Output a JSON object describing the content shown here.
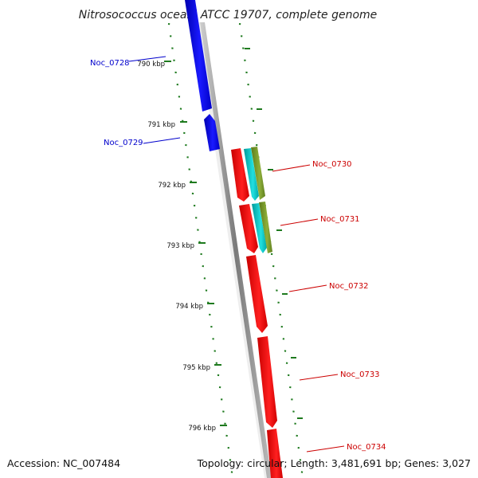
{
  "title": "Nitrosococcus oceani ATCC 19707, complete genome",
  "footer": {
    "accession": "Accession: NC_007484",
    "summary": "Topology: circular; Length: 3,481,691 bp; Genes: 3,027"
  },
  "colors": {
    "background": "#ffffff",
    "backbone": "#8c8c8c",
    "tick": "#1e7a1e",
    "reverse_strand_gene": "#0000ee",
    "forward_strand_gene": "#ee0000",
    "cds_feature": "#00bcbc",
    "other_feature": "#6b8e23",
    "reverse_label": "#0000cc",
    "forward_label": "#cc0000"
  },
  "scale_labels": [
    "790 kbp",
    "791 kbp",
    "792 kbp",
    "793 kbp",
    "794 kbp",
    "795 kbp",
    "796 kbp"
  ],
  "genes": [
    {
      "name": "Noc_0728",
      "strand": "reverse"
    },
    {
      "name": "Noc_0729",
      "strand": "reverse"
    },
    {
      "name": "Noc_0730",
      "strand": "forward"
    },
    {
      "name": "Noc_0731",
      "strand": "forward"
    },
    {
      "name": "Noc_0732",
      "strand": "forward"
    },
    {
      "name": "Noc_0733",
      "strand": "forward"
    },
    {
      "name": "Noc_0734",
      "strand": "forward"
    }
  ]
}
